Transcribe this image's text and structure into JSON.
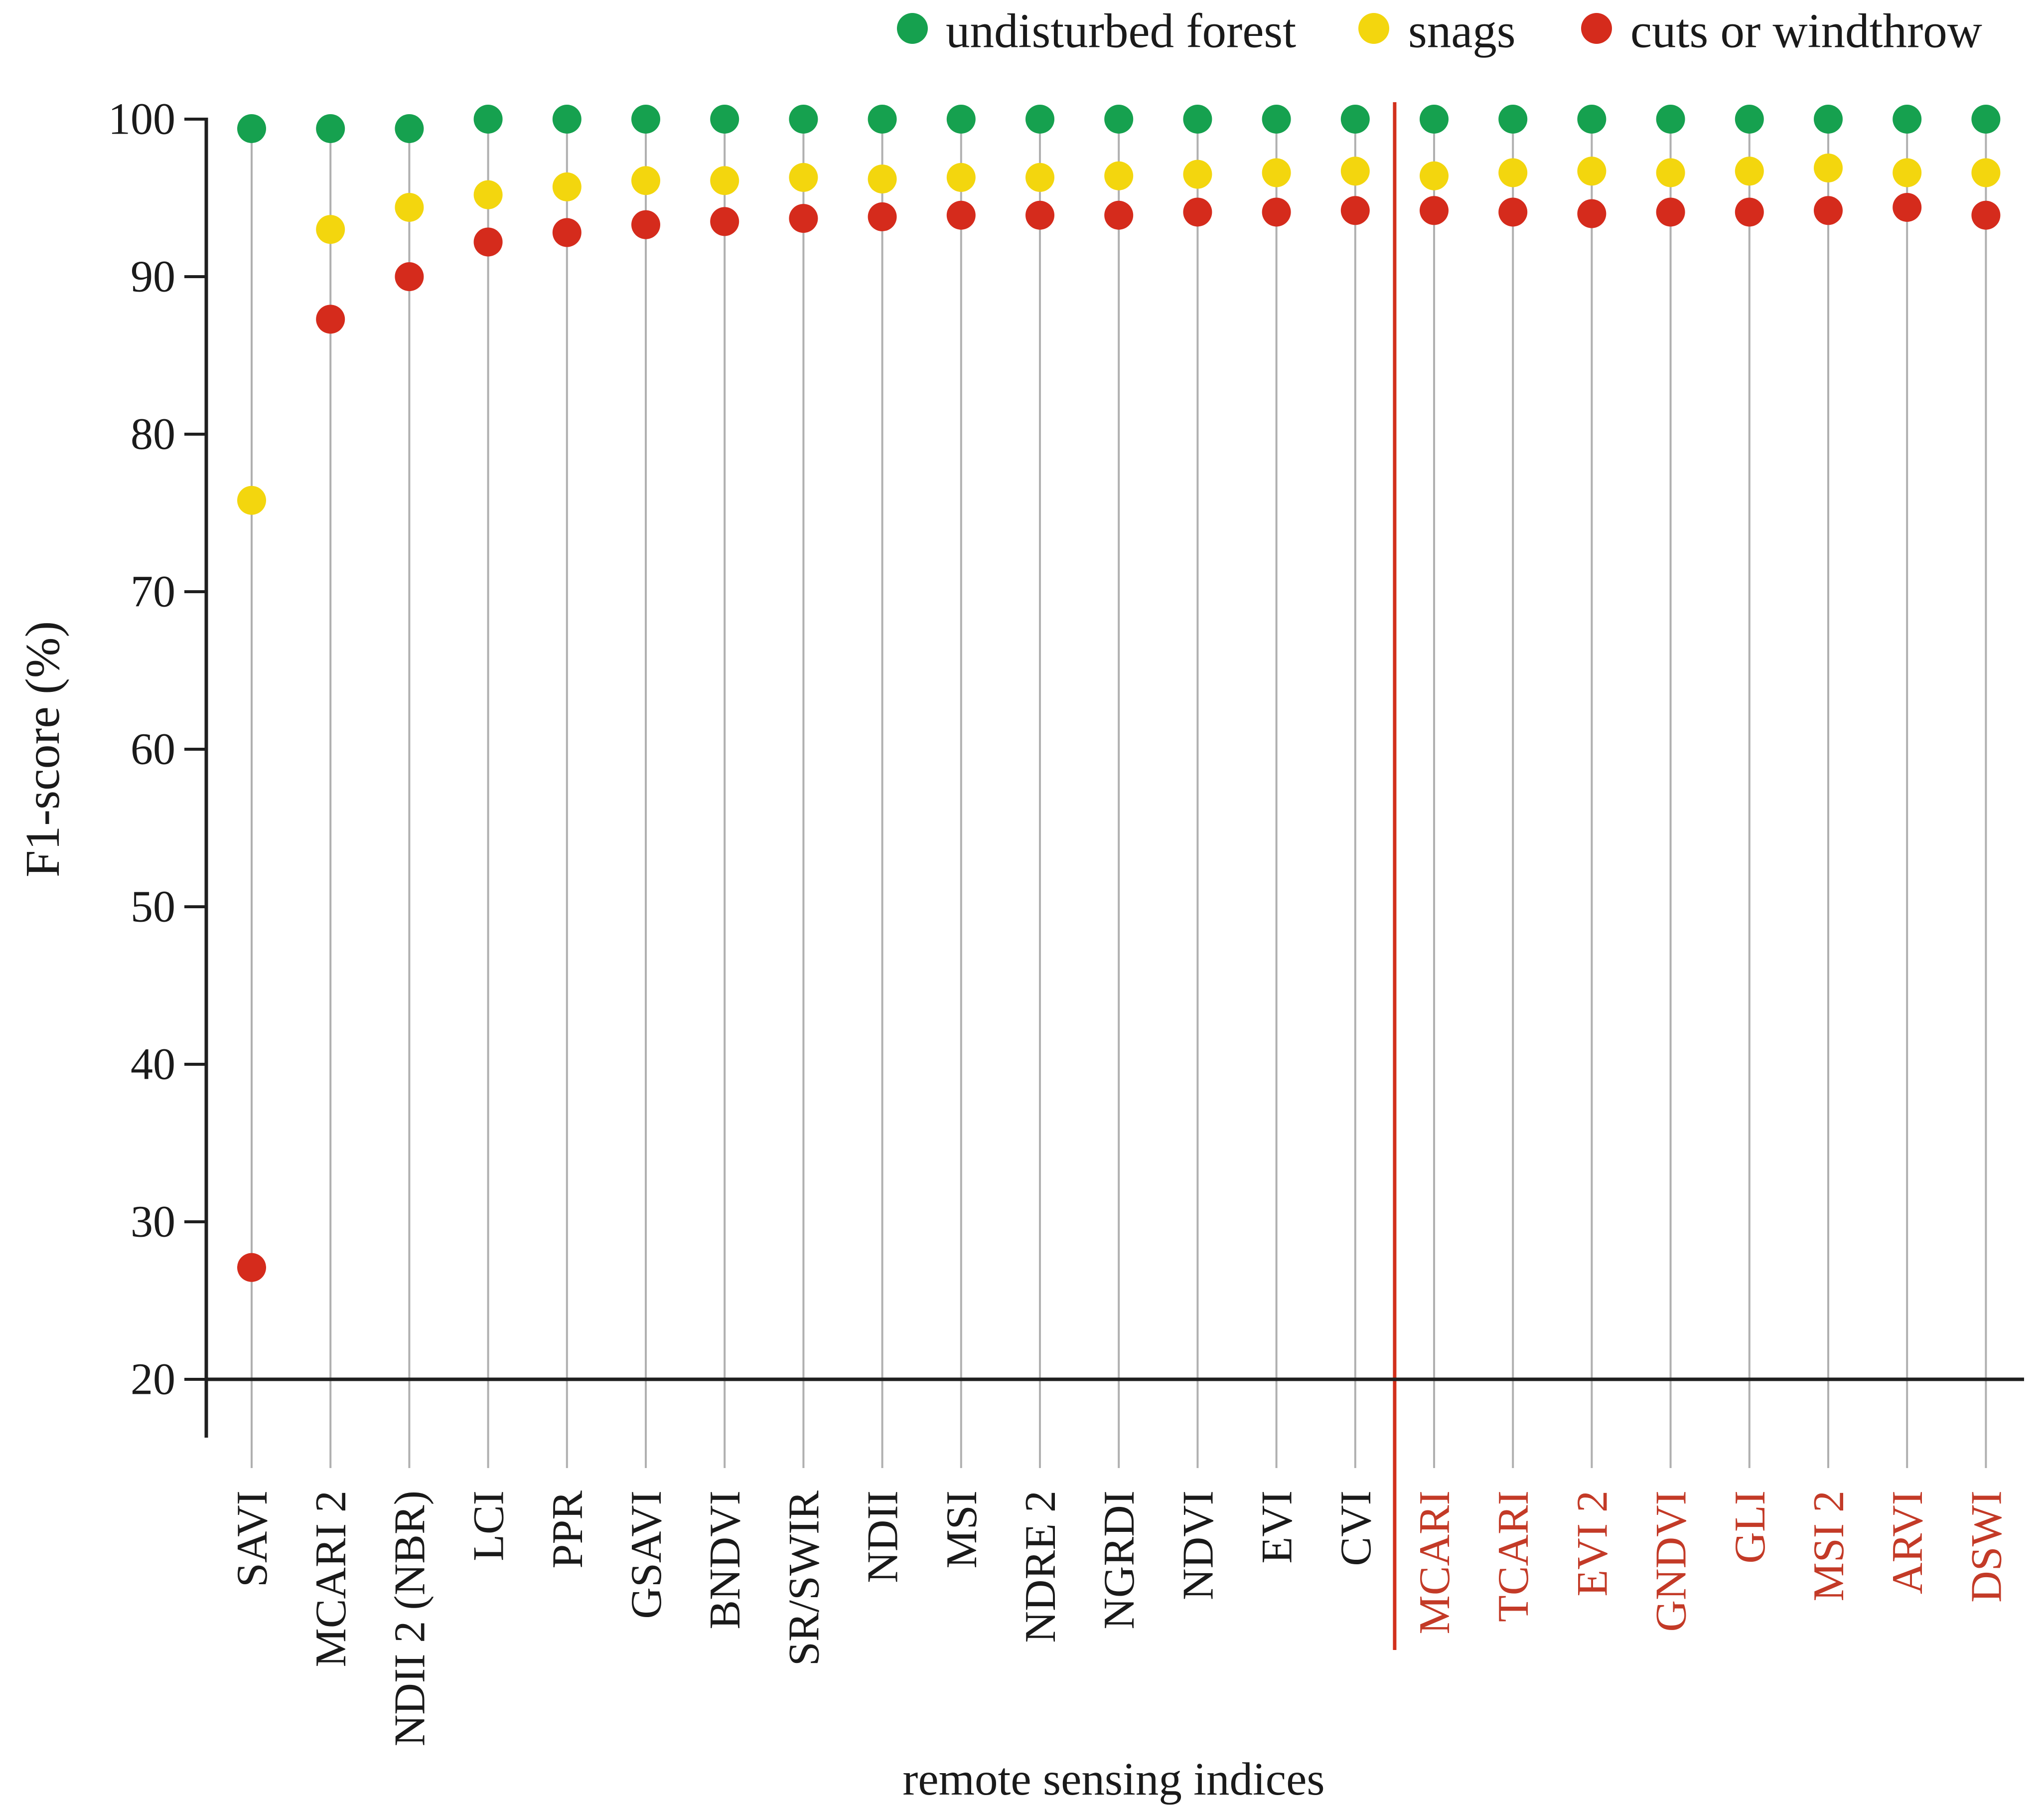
{
  "chart_data": {
    "type": "lollipop",
    "title": "",
    "xlabel": "remote sensing indices",
    "ylabel": "F1-score (%)",
    "ylim": [
      20,
      100
    ],
    "yticks": [
      100,
      90,
      80,
      70,
      60,
      50,
      40,
      30,
      20
    ],
    "grid": "vertical-stem-per-category",
    "legend_position": "top",
    "categories": [
      {
        "label": "SAVI",
        "group": "black"
      },
      {
        "label": "MCARI 2",
        "group": "black"
      },
      {
        "label": "NDII 2 (NBR)",
        "group": "black"
      },
      {
        "label": "LCI",
        "group": "black"
      },
      {
        "label": "PPR",
        "group": "black"
      },
      {
        "label": "GSAVI",
        "group": "black"
      },
      {
        "label": "BNDVI",
        "group": "black"
      },
      {
        "label": "SR/SWIR",
        "group": "black"
      },
      {
        "label": "NDII",
        "group": "black"
      },
      {
        "label": "MSI",
        "group": "black"
      },
      {
        "label": "NDRE 2",
        "group": "black"
      },
      {
        "label": "NGRDI",
        "group": "black"
      },
      {
        "label": "NDVI",
        "group": "black"
      },
      {
        "label": "EVI",
        "group": "black"
      },
      {
        "label": "CVI",
        "group": "black"
      },
      {
        "label": "MCARI",
        "group": "red"
      },
      {
        "label": "TCARI",
        "group": "red"
      },
      {
        "label": "EVI 2",
        "group": "red"
      },
      {
        "label": "GNDVI",
        "group": "red"
      },
      {
        "label": "GLI",
        "group": "red"
      },
      {
        "label": "MSI 2",
        "group": "red"
      },
      {
        "label": "ARVI",
        "group": "red"
      },
      {
        "label": "DSWI",
        "group": "red"
      }
    ],
    "series": [
      {
        "name": "undisturbed forest",
        "color": "#16A14F",
        "values": [
          99.4,
          99.4,
          99.4,
          100,
          100,
          100,
          100,
          100,
          100,
          100,
          100,
          100,
          100,
          100,
          100,
          100,
          100,
          100,
          100,
          100,
          100,
          100,
          100
        ]
      },
      {
        "name": "snags",
        "color": "#F3D60E",
        "values": [
          75.8,
          93.0,
          94.4,
          95.2,
          95.7,
          96.1,
          96.1,
          96.3,
          96.2,
          96.3,
          96.3,
          96.4,
          96.5,
          96.6,
          96.7,
          96.4,
          96.6,
          96.7,
          96.6,
          96.7,
          96.9,
          96.6,
          96.6
        ]
      },
      {
        "name": "cuts or windthrow",
        "color": "#D52B1C",
        "values": [
          27.1,
          87.3,
          90.0,
          92.2,
          92.8,
          93.3,
          93.5,
          93.7,
          93.8,
          93.9,
          93.9,
          93.9,
          94.1,
          94.1,
          94.2,
          94.2,
          94.1,
          94.0,
          94.1,
          94.1,
          94.2,
          94.4,
          93.9
        ]
      }
    ],
    "separator": {
      "between": [
        "CVI",
        "MCARI"
      ],
      "color": "#D2301C"
    },
    "label_colors": {
      "black": "#1A1A1A",
      "red": "#C33A27"
    },
    "axis_color": "#1F1F1F",
    "gridline_color": "#B0B0B0"
  }
}
